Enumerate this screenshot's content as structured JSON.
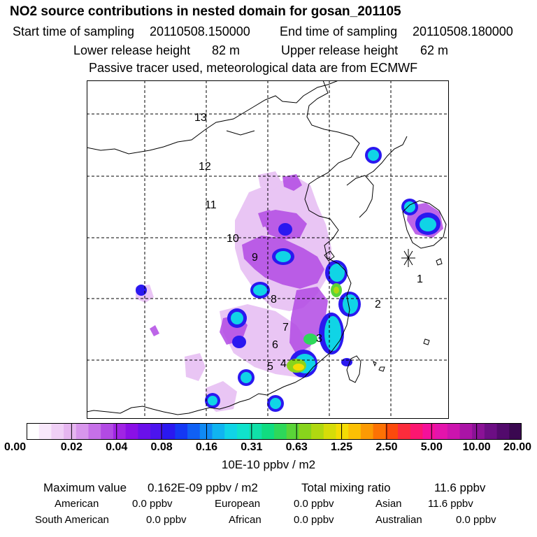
{
  "title": "NO2 source contributions in nested domain for gosan_201105",
  "header": {
    "start_label": "Start time of sampling",
    "start_value": "20110508.150000",
    "end_label": "End time of sampling",
    "end_value": "20110508.180000",
    "lower_label": "Lower release height",
    "lower_value": "82 m",
    "upper_label": "Upper release height",
    "upper_value": "62 m",
    "note": "Passive tracer used, meteorological data are from ECMWF"
  },
  "map": {
    "trajectory_labels": [
      "1",
      "2",
      "3",
      "4",
      "5",
      "6",
      "7",
      "8",
      "9",
      "10",
      "11",
      "12",
      "13"
    ],
    "receptor_marker": "asterisk"
  },
  "colorbar": {
    "tick_labels": [
      "0.00",
      "0.02",
      "0.04",
      "0.08",
      "0.16",
      "0.31",
      "0.63",
      "1.25",
      "2.50",
      "5.00",
      "10.00",
      "20.00"
    ],
    "colors": [
      "#ffffff",
      "#f8e8fb",
      "#f0d0f6",
      "#e6b6f0",
      "#d896ec",
      "#c670e8",
      "#b24ae4",
      "#a024e4",
      "#8a10e6",
      "#6a10ea",
      "#4c14ee",
      "#2a18f0",
      "#1438f4",
      "#1060f4",
      "#108af4",
      "#10b4f0",
      "#10d4e6",
      "#10e2cc",
      "#10e0a8",
      "#10dc80",
      "#2ed85a",
      "#5ad438",
      "#88d41c",
      "#b0d810",
      "#d6dc08",
      "#f4dc04",
      "#fcc004",
      "#fc9a04",
      "#fc7204",
      "#fc4a0c",
      "#fc2c3c",
      "#fc1670",
      "#f4109a",
      "#e414ac",
      "#cc14ae",
      "#aa14a6",
      "#8a1296",
      "#6c0e84",
      "#520a6c",
      "#3a0850"
    ],
    "unit": "10E-10 ppbv / m2"
  },
  "stats": {
    "max_label": "Maximum value",
    "max_value": "0.162E-09 ppbv / m2",
    "total_label": "Total mixing ratio",
    "total_value": "11.6 ppbv",
    "regions": [
      {
        "name": "American",
        "value": "0.0 ppbv"
      },
      {
        "name": "European",
        "value": "0.0 ppbv"
      },
      {
        "name": "Asian",
        "value": "11.6 ppbv"
      },
      {
        "name": "South American",
        "value": "0.0 ppbv"
      },
      {
        "name": "African",
        "value": "0.0 ppbv"
      },
      {
        "name": "Australian",
        "value": "0.0 ppbv"
      }
    ]
  }
}
